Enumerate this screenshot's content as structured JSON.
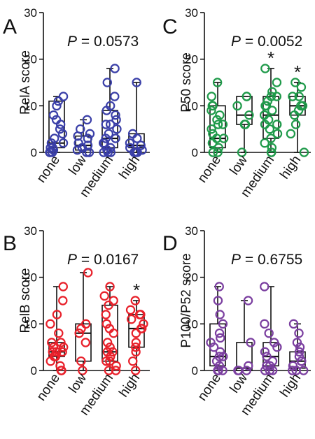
{
  "chart_data": [
    {
      "panel_letter": "A",
      "type": "box-scatter",
      "ylabel": "RelA score",
      "p_label": "P",
      "p_value": " = 0.0573",
      "ylim": [
        0,
        30
      ],
      "yticks": [
        "0",
        "10",
        "20",
        "30"
      ],
      "categories": [
        "none",
        "low",
        "medium",
        "high"
      ],
      "color": "#3a3fa8",
      "boxes": [
        {
          "min": 0,
          "q1": 1,
          "median": 2,
          "q3": 11,
          "max": 12
        },
        {
          "min": 0,
          "q1": 0.5,
          "median": 1.5,
          "q3": 3.5,
          "max": 7
        },
        {
          "min": 0,
          "q1": 1,
          "median": 3,
          "q3": 9,
          "max": 18
        },
        {
          "min": 0,
          "q1": 1,
          "median": 1.5,
          "q3": 4,
          "max": 15
        }
      ],
      "points": [
        [
          0,
          0,
          0,
          0.5,
          1,
          1,
          2,
          2,
          3,
          4,
          5,
          6,
          7,
          8,
          10,
          11,
          12
        ],
        [
          0,
          0,
          0.5,
          1,
          1.5,
          2,
          3,
          3.5,
          4,
          5,
          7
        ],
        [
          0,
          0,
          0,
          0.5,
          1,
          2,
          2,
          3,
          3,
          4,
          5,
          6,
          6,
          7,
          8,
          9,
          10,
          12,
          15,
          18
        ],
        [
          0,
          0,
          0,
          0.5,
          1,
          1.5,
          2,
          3,
          4,
          15
        ]
      ],
      "stars": [
        "",
        "",
        "",
        ""
      ]
    },
    {
      "panel_letter": "C",
      "type": "box-scatter",
      "ylabel": "P50 score",
      "p_label": "P",
      "p_value": " = 0.0052",
      "ylim": [
        0,
        30
      ],
      "yticks": [
        "0",
        "10",
        "20",
        "30"
      ],
      "categories": [
        "none",
        "low",
        "medium",
        "high"
      ],
      "color": "#1f9a4a",
      "boxes": [
        {
          "min": 0,
          "q1": 1,
          "median": 3,
          "q3": 10,
          "max": 15
        },
        {
          "min": 0,
          "q1": 6,
          "median": 8,
          "q3": 12,
          "max": 12
        },
        {
          "min": 0,
          "q1": 3,
          "median": 8,
          "q3": 12,
          "max": 18
        },
        {
          "min": 0,
          "q1": 8,
          "median": 10,
          "q3": 12,
          "max": 15
        }
      ],
      "points": [
        [
          0,
          0,
          1,
          2,
          3,
          3,
          4,
          5,
          6,
          6,
          7,
          8,
          9,
          10,
          10,
          12,
          15
        ],
        [
          0,
          6,
          6,
          8,
          10,
          12,
          12
        ],
        [
          0,
          0,
          1,
          2,
          3,
          4,
          5,
          6,
          6,
          7,
          8,
          9,
          10,
          10,
          11,
          12,
          12,
          13,
          15,
          18
        ],
        [
          0,
          4,
          6,
          8,
          9,
          10,
          10,
          12,
          12,
          14,
          15
        ]
      ],
      "stars": [
        "",
        "",
        "*",
        "*"
      ]
    },
    {
      "panel_letter": "B",
      "type": "box-scatter",
      "ylabel": "RelB score",
      "p_label": "P",
      "p_value": " = 0.0167",
      "ylim": [
        0,
        30
      ],
      "yticks": [
        "0",
        "10",
        "20",
        "30"
      ],
      "categories": [
        "none",
        "low",
        "medium",
        "high"
      ],
      "color": "#e8202a",
      "boxes": [
        {
          "min": 0,
          "q1": 3,
          "median": 4,
          "q3": 6,
          "max": 18
        },
        {
          "min": 0,
          "q1": 2,
          "median": 8,
          "q3": 10,
          "max": 21
        },
        {
          "min": 0,
          "q1": 2,
          "median": 4,
          "q3": 14,
          "max": 18
        },
        {
          "min": 0,
          "q1": 5,
          "median": 9,
          "q3": 12,
          "max": 15
        }
      ],
      "points": [
        [
          0,
          0,
          1,
          2,
          3,
          3,
          4,
          4,
          4,
          5,
          5,
          6,
          6,
          8,
          10,
          12,
          15,
          18
        ],
        [
          0,
          2,
          6,
          8,
          9,
          10,
          21
        ],
        [
          0,
          0,
          1,
          2,
          2,
          3,
          4,
          4,
          5,
          6,
          8,
          9,
          10,
          12,
          14,
          15,
          16,
          18
        ],
        [
          0,
          2,
          4,
          5,
          6,
          8,
          9,
          9,
          10,
          11,
          12,
          12,
          13,
          15
        ]
      ],
      "stars": [
        "",
        "",
        "",
        "*"
      ]
    },
    {
      "panel_letter": "D",
      "type": "box-scatter",
      "ylabel": "P100/P52 score",
      "p_label": "P",
      "p_value": " = 0.6755",
      "ylim": [
        0,
        30
      ],
      "yticks": [
        "0",
        "10",
        "20",
        "30"
      ],
      "categories": [
        "none",
        "low",
        "medium",
        "high"
      ],
      "color": "#7b3fa0",
      "boxes": [
        {
          "min": 0,
          "q1": 1,
          "median": 3,
          "q3": 10,
          "max": 18
        },
        {
          "min": 0,
          "q1": 0,
          "median": 0.5,
          "q3": 6,
          "max": 15
        },
        {
          "min": 0,
          "q1": 1,
          "median": 3,
          "q3": 6,
          "max": 18
        },
        {
          "min": 0,
          "q1": 0.5,
          "median": 2,
          "q3": 4,
          "max": 10
        }
      ],
      "points": [
        [
          0,
          0,
          0,
          1,
          2,
          3,
          3,
          4,
          5,
          6,
          7,
          8,
          10,
          12,
          15,
          18
        ],
        [
          0,
          0,
          0,
          1,
          6,
          15
        ],
        [
          0,
          0,
          0,
          1,
          1,
          2,
          3,
          4,
          5,
          6,
          8,
          10,
          18
        ],
        [
          0,
          0,
          0,
          1,
          2,
          2,
          3,
          4,
          5,
          6,
          8,
          10
        ]
      ],
      "stars": [
        "",
        "",
        "",
        ""
      ]
    }
  ]
}
